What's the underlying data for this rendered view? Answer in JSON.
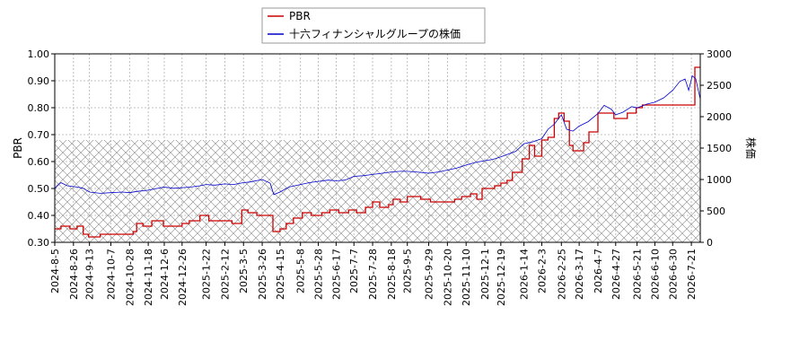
{
  "chart_data": {
    "type": "line",
    "grid": true,
    "legend_placement": "top-center",
    "y_left": {
      "label": "PBR",
      "range": [
        0.3,
        1.0
      ],
      "ticks": [
        "0.30",
        "0.40",
        "0.50",
        "0.60",
        "0.70",
        "0.80",
        "0.90",
        "1.00"
      ]
    },
    "y_right": {
      "label": "株価",
      "range": [
        0,
        3000
      ],
      "ticks": [
        "0",
        "500",
        "1000",
        "1500",
        "2000",
        "2500",
        "3000"
      ]
    },
    "x": {
      "range": [
        "2024-08-05",
        "2026-07-31"
      ],
      "ticks": [
        "2024-8-5",
        "2024-8-26",
        "2024-9-13",
        "2024-10-7",
        "2024-10-28",
        "2024-11-18",
        "2024-12-6",
        "2024-12-26",
        "2025-1-22",
        "2025-2-12",
        "2025-3-5",
        "2025-3-26",
        "2025-4-15",
        "2025-5-8",
        "2025-5-28",
        "2025-6-17",
        "2025-7-7",
        "2025-7-28",
        "2025-8-18",
        "2025-9-5",
        "2025-9-29",
        "2025-10-20",
        "2025-11-10",
        "2025-12-1",
        "2025-12-19",
        "2026-1-14",
        "2026-2-3",
        "2026-2-25",
        "2026-3-17",
        "2026-4-7",
        "2026-4-27",
        "2026-5-21",
        "2026-6-10",
        "2026-6-30",
        "2026-7-21"
      ]
    },
    "hatched_band": {
      "axis": "left",
      "range": [
        0.3,
        0.68
      ]
    },
    "series": [
      {
        "name": "PBR",
        "color": "#cc0000",
        "axis": "left",
        "step": true,
        "points": [
          [
            "2024-08-05",
            0.35
          ],
          [
            "2024-08-12",
            0.36
          ],
          [
            "2024-08-22",
            0.35
          ],
          [
            "2024-08-30",
            0.36
          ],
          [
            "2024-09-06",
            0.33
          ],
          [
            "2024-09-12",
            0.32
          ],
          [
            "2024-09-25",
            0.33
          ],
          [
            "2024-10-20",
            0.33
          ],
          [
            "2024-11-01",
            0.34
          ],
          [
            "2024-11-05",
            0.37
          ],
          [
            "2024-11-12",
            0.36
          ],
          [
            "2024-11-22",
            0.38
          ],
          [
            "2024-12-05",
            0.36
          ],
          [
            "2024-12-26",
            0.37
          ],
          [
            "2025-01-03",
            0.38
          ],
          [
            "2025-01-15",
            0.4
          ],
          [
            "2025-01-25",
            0.38
          ],
          [
            "2025-02-10",
            0.38
          ],
          [
            "2025-02-20",
            0.37
          ],
          [
            "2025-03-03",
            0.42
          ],
          [
            "2025-03-10",
            0.41
          ],
          [
            "2025-03-20",
            0.4
          ],
          [
            "2025-04-07",
            0.34
          ],
          [
            "2025-04-15",
            0.35
          ],
          [
            "2025-04-22",
            0.37
          ],
          [
            "2025-04-30",
            0.39
          ],
          [
            "2025-05-10",
            0.41
          ],
          [
            "2025-05-20",
            0.4
          ],
          [
            "2025-06-01",
            0.41
          ],
          [
            "2025-06-10",
            0.42
          ],
          [
            "2025-06-20",
            0.41
          ],
          [
            "2025-07-01",
            0.42
          ],
          [
            "2025-07-10",
            0.41
          ],
          [
            "2025-07-20",
            0.43
          ],
          [
            "2025-07-28",
            0.45
          ],
          [
            "2025-08-05",
            0.43
          ],
          [
            "2025-08-15",
            0.44
          ],
          [
            "2025-08-20",
            0.46
          ],
          [
            "2025-08-28",
            0.45
          ],
          [
            "2025-09-05",
            0.47
          ],
          [
            "2025-09-20",
            0.46
          ],
          [
            "2025-10-01",
            0.45
          ],
          [
            "2025-10-28",
            0.46
          ],
          [
            "2025-11-05",
            0.47
          ],
          [
            "2025-11-15",
            0.48
          ],
          [
            "2025-11-22",
            0.46
          ],
          [
            "2025-11-28",
            0.5
          ],
          [
            "2025-12-05",
            0.5
          ],
          [
            "2025-12-12",
            0.51
          ],
          [
            "2025-12-19",
            0.52
          ],
          [
            "2025-12-26",
            0.53
          ],
          [
            "2026-01-01",
            0.56
          ],
          [
            "2026-01-12",
            0.61
          ],
          [
            "2026-01-20",
            0.66
          ],
          [
            "2026-01-26",
            0.62
          ],
          [
            "2026-02-03",
            0.68
          ],
          [
            "2026-02-10",
            0.69
          ],
          [
            "2026-02-17",
            0.76
          ],
          [
            "2026-02-22",
            0.78
          ],
          [
            "2026-02-28",
            0.75
          ],
          [
            "2026-03-06",
            0.66
          ],
          [
            "2026-03-10",
            0.64
          ],
          [
            "2026-03-22",
            0.67
          ],
          [
            "2026-03-28",
            0.71
          ],
          [
            "2026-04-07",
            0.78
          ],
          [
            "2026-04-15",
            0.78
          ],
          [
            "2026-04-25",
            0.76
          ],
          [
            "2026-05-10",
            0.78
          ],
          [
            "2026-05-20",
            0.8
          ],
          [
            "2026-05-27",
            0.81
          ],
          [
            "2026-06-10",
            0.81
          ],
          [
            "2026-07-24",
            0.81
          ],
          [
            "2026-07-25",
            0.95
          ],
          [
            "2026-07-31",
            0.95
          ]
        ]
      },
      {
        "name": "十六フィナンシャルグループの株価",
        "color": "#0000cc",
        "axis": "right",
        "step": false,
        "points": [
          [
            "2024-08-05",
            850
          ],
          [
            "2024-08-08",
            900
          ],
          [
            "2024-08-12",
            950
          ],
          [
            "2024-08-19",
            900
          ],
          [
            "2024-08-30",
            880
          ],
          [
            "2024-09-06",
            860
          ],
          [
            "2024-09-13",
            800
          ],
          [
            "2024-09-25",
            780
          ],
          [
            "2024-10-07",
            790
          ],
          [
            "2024-10-20",
            800
          ],
          [
            "2024-10-28",
            790
          ],
          [
            "2024-11-05",
            810
          ],
          [
            "2024-11-18",
            830
          ],
          [
            "2024-11-25",
            850
          ],
          [
            "2024-12-06",
            880
          ],
          [
            "2024-12-16",
            860
          ],
          [
            "2024-12-26",
            870
          ],
          [
            "2025-01-05",
            880
          ],
          [
            "2025-01-15",
            900
          ],
          [
            "2025-01-22",
            920
          ],
          [
            "2025-02-01",
            910
          ],
          [
            "2025-02-12",
            930
          ],
          [
            "2025-02-22",
            920
          ],
          [
            "2025-03-05",
            950
          ],
          [
            "2025-03-12",
            960
          ],
          [
            "2025-03-26",
            1000
          ],
          [
            "2025-04-04",
            940
          ],
          [
            "2025-04-08",
            760
          ],
          [
            "2025-04-15",
            800
          ],
          [
            "2025-04-25",
            880
          ],
          [
            "2025-05-08",
            920
          ],
          [
            "2025-05-18",
            950
          ],
          [
            "2025-05-28",
            970
          ],
          [
            "2025-06-08",
            990
          ],
          [
            "2025-06-17",
            980
          ],
          [
            "2025-06-27",
            990
          ],
          [
            "2025-07-07",
            1050
          ],
          [
            "2025-07-17",
            1060
          ],
          [
            "2025-07-28",
            1080
          ],
          [
            "2025-08-08",
            1100
          ],
          [
            "2025-08-18",
            1120
          ],
          [
            "2025-08-28",
            1130
          ],
          [
            "2025-09-05",
            1130
          ],
          [
            "2025-09-15",
            1120
          ],
          [
            "2025-09-29",
            1100
          ],
          [
            "2025-10-10",
            1120
          ],
          [
            "2025-10-20",
            1150
          ],
          [
            "2025-10-30",
            1180
          ],
          [
            "2025-11-10",
            1230
          ],
          [
            "2025-11-20",
            1270
          ],
          [
            "2025-12-01",
            1300
          ],
          [
            "2025-12-10",
            1320
          ],
          [
            "2025-12-19",
            1360
          ],
          [
            "2026-01-05",
            1450
          ],
          [
            "2026-01-14",
            1570
          ],
          [
            "2026-01-24",
            1600
          ],
          [
            "2026-02-03",
            1650
          ],
          [
            "2026-02-10",
            1800
          ],
          [
            "2026-02-17",
            1880
          ],
          [
            "2026-02-25",
            2030
          ],
          [
            "2026-03-03",
            1800
          ],
          [
            "2026-03-10",
            1770
          ],
          [
            "2026-03-17",
            1850
          ],
          [
            "2026-03-27",
            1920
          ],
          [
            "2026-04-07",
            2050
          ],
          [
            "2026-04-14",
            2180
          ],
          [
            "2026-04-22",
            2120
          ],
          [
            "2026-04-27",
            2030
          ],
          [
            "2026-05-05",
            2070
          ],
          [
            "2026-05-15",
            2160
          ],
          [
            "2026-05-21",
            2140
          ],
          [
            "2026-06-01",
            2200
          ],
          [
            "2026-06-10",
            2230
          ],
          [
            "2026-06-20",
            2300
          ],
          [
            "2026-06-30",
            2420
          ],
          [
            "2026-07-08",
            2560
          ],
          [
            "2026-07-14",
            2600
          ],
          [
            "2026-07-18",
            2420
          ],
          [
            "2026-07-22",
            2650
          ],
          [
            "2026-07-26",
            2600
          ],
          [
            "2026-07-31",
            2280
          ]
        ]
      }
    ]
  }
}
